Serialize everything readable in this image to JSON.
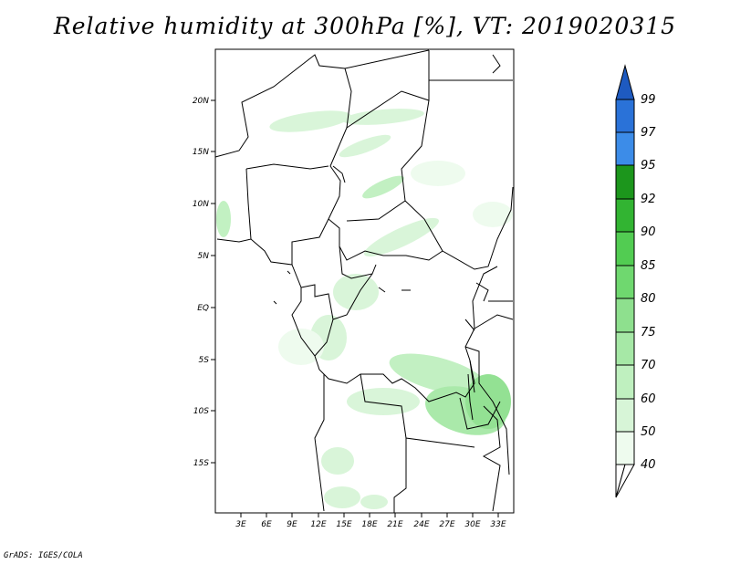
{
  "title": "Relative humidity at 300hPa [%], VT: 2019020315",
  "credit": "GrADS: IGES/COLA",
  "map": {
    "lat_labels": [
      "20N",
      "15N",
      "10N",
      "5N",
      "EQ",
      "5S",
      "10S",
      "15S"
    ],
    "lon_labels": [
      "3E",
      "6E",
      "9E",
      "12E",
      "15E",
      "18E",
      "21E",
      "24E",
      "27E",
      "30E",
      "33E"
    ]
  },
  "colorbar": {
    "levels": [
      "40",
      "50",
      "60",
      "70",
      "75",
      "80",
      "85",
      "90",
      "92",
      "95",
      "97",
      "99"
    ],
    "colors": [
      "#eefbee",
      "#d7f5d7",
      "#bff0bf",
      "#a6e8a6",
      "#8ee08e",
      "#6fd86f",
      "#52cc52",
      "#32b432",
      "#1c961c",
      "#3c8ce8",
      "#2a72d8",
      "#1e5ac0"
    ]
  }
}
